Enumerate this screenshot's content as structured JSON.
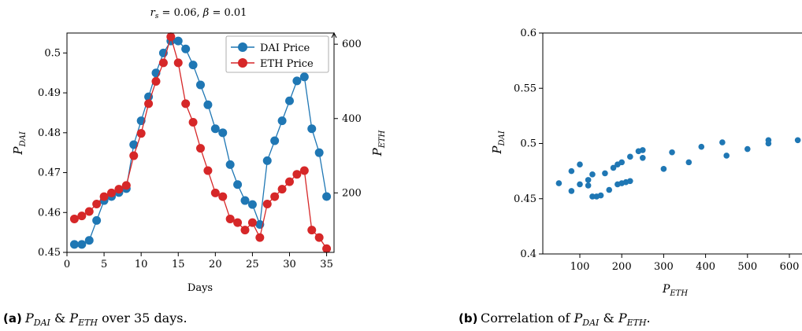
{
  "panel_a": {
    "title": "r_s = 0.06, β = 0.01",
    "caption_label": "(a)",
    "caption_text": "P_DAI & P_ETH over 35 days."
  },
  "panel_b": {
    "caption_label": "(b)",
    "caption_text": "Correlation of P_DAI & P_ETH."
  },
  "colors": {
    "dai": "#1f77b4",
    "eth": "#d62728"
  },
  "chart_data": [
    {
      "type": "line",
      "title": "r_s = 0.06, β = 0.01",
      "xlabel": "Days",
      "ylabel": "P_DAI",
      "ylabel_right": "P_ETH",
      "xlim": [
        0,
        36
      ],
      "ylim": [
        0.45,
        0.505
      ],
      "ylim_right": [
        40,
        630
      ],
      "xticks": [
        0,
        5,
        10,
        15,
        20,
        25,
        30,
        35
      ],
      "yticks": [
        0.45,
        0.46,
        0.47,
        0.48,
        0.49,
        0.5
      ],
      "yticks_right": [
        200,
        400,
        600
      ],
      "legend_position": "top-right",
      "x": [
        1,
        2,
        3,
        4,
        5,
        6,
        7,
        8,
        9,
        10,
        11,
        12,
        13,
        14,
        15,
        16,
        17,
        18,
        19,
        20,
        21,
        22,
        23,
        24,
        25,
        26,
        27,
        28,
        29,
        30,
        31,
        32,
        33,
        34,
        35
      ],
      "series": [
        {
          "name": "DAI Price",
          "axis": "left",
          "color": "#1f77b4",
          "values": [
            0.452,
            0.452,
            0.453,
            0.458,
            0.463,
            0.464,
            0.465,
            0.466,
            0.477,
            0.483,
            0.489,
            0.495,
            0.5,
            0.503,
            0.503,
            0.501,
            0.497,
            0.492,
            0.487,
            0.481,
            0.48,
            0.472,
            0.467,
            0.463,
            0.462,
            0.457,
            0.473,
            0.478,
            0.483,
            0.488,
            0.493,
            0.494,
            0.481,
            0.475,
            0.464
          ]
        },
        {
          "name": "ETH Price",
          "axis": "right",
          "color": "#d62728",
          "values": [
            130,
            138,
            150,
            170,
            190,
            200,
            210,
            220,
            300,
            360,
            440,
            500,
            550,
            620,
            550,
            440,
            390,
            320,
            260,
            200,
            190,
            130,
            120,
            100,
            120,
            80,
            170,
            190,
            210,
            230,
            250,
            260,
            100,
            80,
            50
          ]
        }
      ]
    },
    {
      "type": "scatter",
      "xlabel": "P_ETH",
      "ylabel": "P_DAI",
      "xlim": [
        0,
        620
      ],
      "ylim": [
        0.4,
        0.6
      ],
      "xticks": [
        100,
        200,
        300,
        400,
        500,
        600
      ],
      "yticks": [
        0.4,
        0.45,
        0.5,
        0.55,
        0.6
      ],
      "color": "#1f77b4",
      "points": [
        [
          50,
          0.464
        ],
        [
          80,
          0.475
        ],
        [
          80,
          0.457
        ],
        [
          100,
          0.481
        ],
        [
          100,
          0.463
        ],
        [
          120,
          0.467
        ],
        [
          120,
          0.462
        ],
        [
          130,
          0.472
        ],
        [
          130,
          0.452
        ],
        [
          140,
          0.452
        ],
        [
          150,
          0.453
        ],
        [
          160,
          0.473
        ],
        [
          170,
          0.458
        ],
        [
          180,
          0.478
        ],
        [
          190,
          0.463
        ],
        [
          190,
          0.481
        ],
        [
          200,
          0.464
        ],
        [
          200,
          0.483
        ],
        [
          210,
          0.465
        ],
        [
          220,
          0.466
        ],
        [
          220,
          0.488
        ],
        [
          240,
          0.493
        ],
        [
          250,
          0.494
        ],
        [
          250,
          0.487
        ],
        [
          300,
          0.477
        ],
        [
          320,
          0.492
        ],
        [
          360,
          0.483
        ],
        [
          390,
          0.497
        ],
        [
          440,
          0.501
        ],
        [
          450,
          0.489
        ],
        [
          500,
          0.495
        ],
        [
          550,
          0.503
        ],
        [
          550,
          0.5
        ],
        [
          620,
          0.503
        ]
      ]
    }
  ]
}
